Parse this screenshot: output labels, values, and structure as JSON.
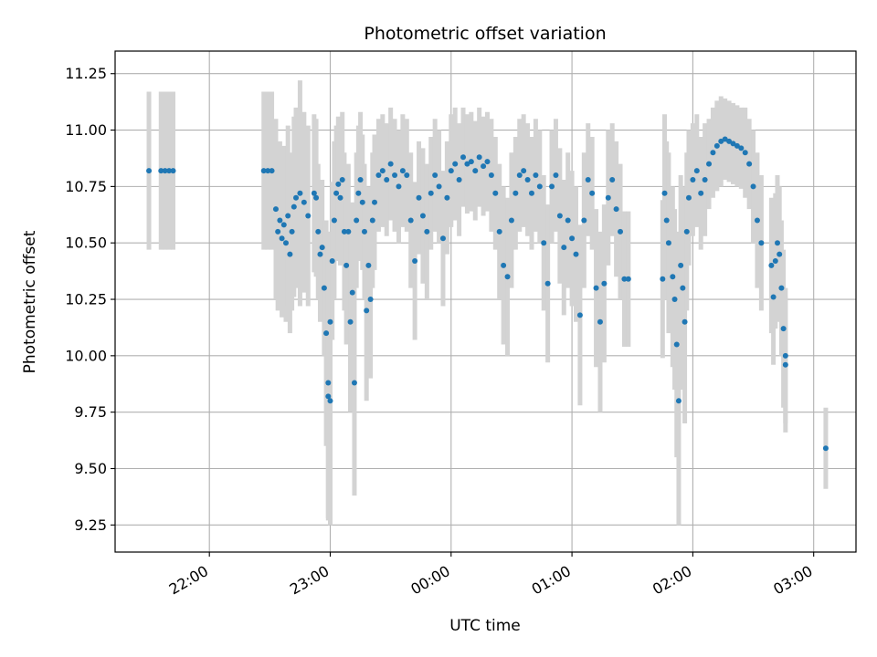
{
  "chart_data": {
    "type": "scatter",
    "title": "Photometric offset variation",
    "xlabel": "UTC time",
    "ylabel": "Photometric offset",
    "xlim_hours": [
      -2.78,
      3.35
    ],
    "ylim": [
      9.13,
      11.35
    ],
    "yticks": [
      9.25,
      9.5,
      9.75,
      10.0,
      10.25,
      10.5,
      10.75,
      11.0,
      11.25
    ],
    "ytick_labels": [
      "9.25",
      "9.50",
      "9.75",
      "10.00",
      "10.25",
      "10.50",
      "10.75",
      "11.00",
      "11.25"
    ],
    "xticks_hours": [
      -2,
      -1,
      0,
      1,
      2,
      3
    ],
    "xtick_labels": [
      "22:00",
      "23:00",
      "00:00",
      "01:00",
      "02:00",
      "03:00"
    ],
    "grid": true,
    "point_color": "#1f77b4",
    "errorbar_color": "#d3d3d3",
    "series": [
      {
        "values": [
          [
            "21:30",
            10.82,
            0.35
          ],
          [
            "21:36",
            10.82,
            0.35
          ],
          [
            "21:38",
            10.82,
            0.35
          ],
          [
            "21:40",
            10.82,
            0.35
          ],
          [
            "21:42",
            10.82,
            0.35
          ],
          [
            "22:27",
            10.82,
            0.35
          ],
          [
            "22:29",
            10.82,
            0.35
          ],
          [
            "22:31",
            10.82,
            0.35
          ],
          [
            "22:33",
            10.65,
            0.4
          ],
          [
            "22:34",
            10.55,
            0.35
          ],
          [
            "22:35",
            10.6,
            0.35
          ],
          [
            "22:36",
            10.52,
            0.35
          ],
          [
            "22:37",
            10.58,
            0.35
          ],
          [
            "22:38",
            10.5,
            0.35
          ],
          [
            "22:39",
            10.62,
            0.4
          ],
          [
            "22:40",
            10.45,
            0.35
          ],
          [
            "22:41",
            10.55,
            0.35
          ],
          [
            "22:42",
            10.66,
            0.4
          ],
          [
            "22:43",
            10.7,
            0.4
          ],
          [
            "22:45",
            10.72,
            0.5
          ],
          [
            "22:47",
            10.68,
            0.4
          ],
          [
            "22:49",
            10.62,
            0.4
          ],
          [
            "22:52",
            10.72,
            0.35
          ],
          [
            "22:53",
            10.7,
            0.35
          ],
          [
            "22:54",
            10.55,
            0.3
          ],
          [
            "22:55",
            10.45,
            0.3
          ],
          [
            "22:56",
            10.48,
            0.3
          ],
          [
            "22:57",
            10.3,
            0.3
          ],
          [
            "22:58",
            10.1,
            0.5
          ],
          [
            "22:59",
            9.88,
            0.6
          ],
          [
            "22:59",
            9.82,
            0.55
          ],
          [
            "23:00",
            9.8,
            0.55
          ],
          [
            "23:00",
            10.15,
            0.4
          ],
          [
            "23:01",
            10.42,
            0.35
          ],
          [
            "23:02",
            10.6,
            0.35
          ],
          [
            "23:03",
            10.72,
            0.3
          ],
          [
            "23:04",
            10.76,
            0.3
          ],
          [
            "23:05",
            10.7,
            0.3
          ],
          [
            "23:06",
            10.78,
            0.3
          ],
          [
            "23:07",
            10.55,
            0.35
          ],
          [
            "23:08",
            10.4,
            0.35
          ],
          [
            "23:09",
            10.55,
            0.3
          ],
          [
            "23:10",
            10.15,
            0.4
          ],
          [
            "23:11",
            10.28,
            0.4
          ],
          [
            "23:12",
            9.88,
            0.5
          ],
          [
            "23:13",
            10.6,
            0.3
          ],
          [
            "23:14",
            10.72,
            0.3
          ],
          [
            "23:15",
            10.78,
            0.3
          ],
          [
            "23:16",
            10.68,
            0.3
          ],
          [
            "23:17",
            10.55,
            0.3
          ],
          [
            "23:18",
            10.2,
            0.4
          ],
          [
            "23:19",
            10.4,
            0.35
          ],
          [
            "23:20",
            10.25,
            0.35
          ],
          [
            "23:21",
            10.6,
            0.3
          ],
          [
            "23:22",
            10.68,
            0.3
          ],
          [
            "23:24",
            10.8,
            0.25
          ],
          [
            "23:26",
            10.82,
            0.25
          ],
          [
            "23:28",
            10.78,
            0.25
          ],
          [
            "23:30",
            10.85,
            0.25
          ],
          [
            "23:32",
            10.8,
            0.25
          ],
          [
            "23:34",
            10.75,
            0.25
          ],
          [
            "23:36",
            10.82,
            0.25
          ],
          [
            "23:38",
            10.8,
            0.25
          ],
          [
            "23:40",
            10.6,
            0.3
          ],
          [
            "23:42",
            10.42,
            0.35
          ],
          [
            "23:44",
            10.7,
            0.25
          ],
          [
            "23:46",
            10.62,
            0.3
          ],
          [
            "23:48",
            10.55,
            0.3
          ],
          [
            "23:50",
            10.72,
            0.25
          ],
          [
            "23:52",
            10.8,
            0.25
          ],
          [
            "23:54",
            10.75,
            0.25
          ],
          [
            "23:56",
            10.52,
            0.3
          ],
          [
            "23:58",
            10.7,
            0.25
          ],
          [
            "00:00",
            10.82,
            0.25
          ],
          [
            "00:02",
            10.85,
            0.25
          ],
          [
            "00:04",
            10.78,
            0.25
          ],
          [
            "00:06",
            10.88,
            0.22
          ],
          [
            "00:08",
            10.85,
            0.22
          ],
          [
            "00:10",
            10.86,
            0.22
          ],
          [
            "00:12",
            10.82,
            0.22
          ],
          [
            "00:14",
            10.88,
            0.22
          ],
          [
            "00:16",
            10.84,
            0.22
          ],
          [
            "00:18",
            10.86,
            0.22
          ],
          [
            "00:20",
            10.8,
            0.25
          ],
          [
            "00:22",
            10.72,
            0.25
          ],
          [
            "00:24",
            10.55,
            0.3
          ],
          [
            "00:26",
            10.4,
            0.35
          ],
          [
            "00:28",
            10.35,
            0.35
          ],
          [
            "00:30",
            10.6,
            0.3
          ],
          [
            "00:32",
            10.72,
            0.25
          ],
          [
            "00:34",
            10.8,
            0.25
          ],
          [
            "00:36",
            10.82,
            0.25
          ],
          [
            "00:38",
            10.78,
            0.25
          ],
          [
            "00:40",
            10.72,
            0.25
          ],
          [
            "00:42",
            10.8,
            0.25
          ],
          [
            "00:44",
            10.75,
            0.25
          ],
          [
            "00:46",
            10.5,
            0.3
          ],
          [
            "00:48",
            10.32,
            0.35
          ],
          [
            "00:50",
            10.75,
            0.25
          ],
          [
            "00:52",
            10.8,
            0.25
          ],
          [
            "00:54",
            10.62,
            0.3
          ],
          [
            "00:56",
            10.48,
            0.3
          ],
          [
            "00:58",
            10.6,
            0.3
          ],
          [
            "01:00",
            10.52,
            0.3
          ],
          [
            "01:02",
            10.45,
            0.3
          ],
          [
            "01:04",
            10.18,
            0.4
          ],
          [
            "01:06",
            10.6,
            0.3
          ],
          [
            "01:08",
            10.78,
            0.25
          ],
          [
            "01:10",
            10.72,
            0.25
          ],
          [
            "01:12",
            10.3,
            0.35
          ],
          [
            "01:14",
            10.15,
            0.4
          ],
          [
            "01:16",
            10.32,
            0.35
          ],
          [
            "01:18",
            10.7,
            0.3
          ],
          [
            "01:20",
            10.78,
            0.25
          ],
          [
            "01:22",
            10.65,
            0.3
          ],
          [
            "01:24",
            10.55,
            0.3
          ],
          [
            "01:26",
            10.34,
            0.3
          ],
          [
            "01:28",
            10.34,
            0.3
          ],
          [
            "01:45",
            10.34,
            0.35
          ],
          [
            "01:46",
            10.72,
            0.35
          ],
          [
            "01:47",
            10.6,
            0.35
          ],
          [
            "01:48",
            10.5,
            0.4
          ],
          [
            "01:50",
            10.35,
            0.4
          ],
          [
            "01:51",
            10.25,
            0.4
          ],
          [
            "01:52",
            10.05,
            0.5
          ],
          [
            "01:53",
            9.8,
            0.55
          ],
          [
            "01:54",
            10.4,
            0.4
          ],
          [
            "01:55",
            10.3,
            0.45
          ],
          [
            "01:56",
            10.15,
            0.45
          ],
          [
            "01:57",
            10.55,
            0.35
          ],
          [
            "01:58",
            10.7,
            0.3
          ],
          [
            "02:00",
            10.78,
            0.25
          ],
          [
            "02:02",
            10.82,
            0.25
          ],
          [
            "02:04",
            10.72,
            0.25
          ],
          [
            "02:06",
            10.78,
            0.25
          ],
          [
            "02:08",
            10.85,
            0.2
          ],
          [
            "02:10",
            10.9,
            0.2
          ],
          [
            "02:12",
            10.93,
            0.2
          ],
          [
            "02:14",
            10.95,
            0.2
          ],
          [
            "02:16",
            10.96,
            0.18
          ],
          [
            "02:18",
            10.95,
            0.18
          ],
          [
            "02:20",
            10.94,
            0.18
          ],
          [
            "02:22",
            10.93,
            0.18
          ],
          [
            "02:24",
            10.92,
            0.18
          ],
          [
            "02:26",
            10.9,
            0.2
          ],
          [
            "02:28",
            10.85,
            0.2
          ],
          [
            "02:30",
            10.75,
            0.25
          ],
          [
            "02:32",
            10.6,
            0.3
          ],
          [
            "02:34",
            10.5,
            0.3
          ],
          [
            "02:39",
            10.4,
            0.3
          ],
          [
            "02:40",
            10.26,
            0.3
          ],
          [
            "02:41",
            10.42,
            0.3
          ],
          [
            "02:42",
            10.5,
            0.3
          ],
          [
            "02:43",
            10.45,
            0.3
          ],
          [
            "02:44",
            10.3,
            0.3
          ],
          [
            "02:45",
            10.12,
            0.35
          ],
          [
            "02:46",
            10.0,
            0.3
          ],
          [
            "02:46",
            9.96,
            0.3
          ],
          [
            "03:06",
            9.59,
            0.18
          ]
        ]
      }
    ]
  }
}
